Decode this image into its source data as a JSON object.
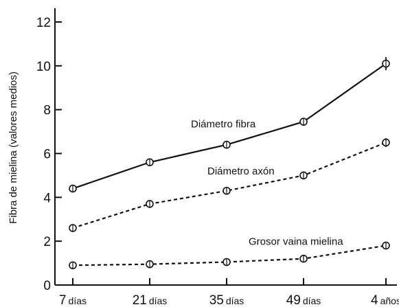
{
  "chart_data": {
    "type": "line",
    "title": "",
    "xlabel": "",
    "ylabel": "Fibra de mielina (valores medios)",
    "ylim": [
      0,
      12
    ],
    "yticks": [
      0,
      2,
      4,
      6,
      8,
      10,
      12
    ],
    "categories": [
      {
        "num": "7",
        "unit": "días"
      },
      {
        "num": "21",
        "unit": "días"
      },
      {
        "num": "35",
        "unit": "días"
      },
      {
        "num": "49",
        "unit": "días"
      },
      {
        "num": "4",
        "unit": "años"
      }
    ],
    "series": [
      {
        "name": "Diámetro fibra",
        "style": "solid",
        "values": [
          4.4,
          5.6,
          6.4,
          7.45,
          10.1
        ],
        "error": [
          0.05,
          0.05,
          0.05,
          0.1,
          0.3
        ]
      },
      {
        "name": "Diámetro axón",
        "style": "dashed",
        "values": [
          2.6,
          3.7,
          4.3,
          5.0,
          6.5
        ],
        "error": [
          0.05,
          0.05,
          0.05,
          0.05,
          0.2
        ]
      },
      {
        "name": "Grosor vaina mielina",
        "style": "dashed",
        "values": [
          0.9,
          0.95,
          1.05,
          1.2,
          1.8
        ],
        "error": [
          0.05,
          0.05,
          0.05,
          0.05,
          0.1
        ]
      }
    ],
    "legend": "inline labels near lines",
    "grid": false,
    "colors": {
      "line": "#111111",
      "marker_fill": "#ffffff"
    }
  }
}
